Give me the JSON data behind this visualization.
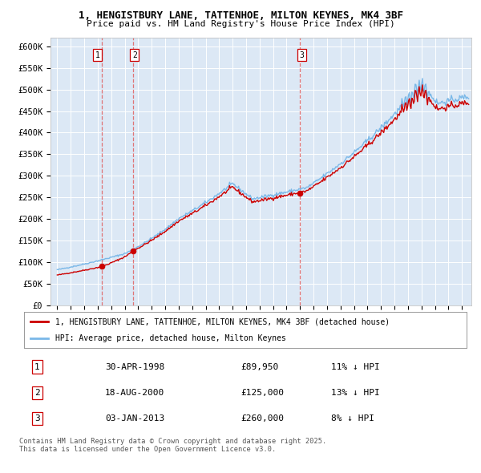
{
  "title_line1": "1, HENGISTBURY LANE, TATTENHOE, MILTON KEYNES, MK4 3BF",
  "title_line2": "Price paid vs. HM Land Registry's House Price Index (HPI)",
  "background_color": "#ffffff",
  "plot_bg_color": "#dce8f5",
  "grid_color": "#ffffff",
  "sale_color": "#cc0000",
  "hpi_color": "#7ab8e8",
  "sale_dates": [
    1998.33,
    2000.63,
    2013.01
  ],
  "sale_prices": [
    89950,
    125000,
    260000
  ],
  "sale_labels": [
    "1",
    "2",
    "3"
  ],
  "vline_color": "#e06060",
  "ylim": [
    0,
    620000
  ],
  "yticks": [
    0,
    50000,
    100000,
    150000,
    200000,
    250000,
    300000,
    350000,
    400000,
    450000,
    500000,
    550000,
    600000
  ],
  "ytick_labels": [
    "£0",
    "£50K",
    "£100K",
    "£150K",
    "£200K",
    "£250K",
    "£300K",
    "£350K",
    "£400K",
    "£450K",
    "£500K",
    "£550K",
    "£600K"
  ],
  "xlim_start": 1994.5,
  "xlim_end": 2025.7,
  "xtick_years": [
    1995,
    1996,
    1997,
    1998,
    1999,
    2000,
    2001,
    2002,
    2003,
    2004,
    2005,
    2006,
    2007,
    2008,
    2009,
    2010,
    2011,
    2012,
    2013,
    2014,
    2015,
    2016,
    2017,
    2018,
    2019,
    2020,
    2021,
    2022,
    2023,
    2024,
    2025
  ],
  "legend_sale_label": "1, HENGISTBURY LANE, TATTENHOE, MILTON KEYNES, MK4 3BF (detached house)",
  "legend_hpi_label": "HPI: Average price, detached house, Milton Keynes",
  "table_rows": [
    {
      "num": "1",
      "date": "30-APR-1998",
      "price": "£89,950",
      "hpi": "11% ↓ HPI"
    },
    {
      "num": "2",
      "date": "18-AUG-2000",
      "price": "£125,000",
      "hpi": "13% ↓ HPI"
    },
    {
      "num": "3",
      "date": "03-JAN-2013",
      "price": "£260,000",
      "hpi": "8% ↓ HPI"
    }
  ],
  "footnote": "Contains HM Land Registry data © Crown copyright and database right 2025.\nThis data is licensed under the Open Government Licence v3.0."
}
